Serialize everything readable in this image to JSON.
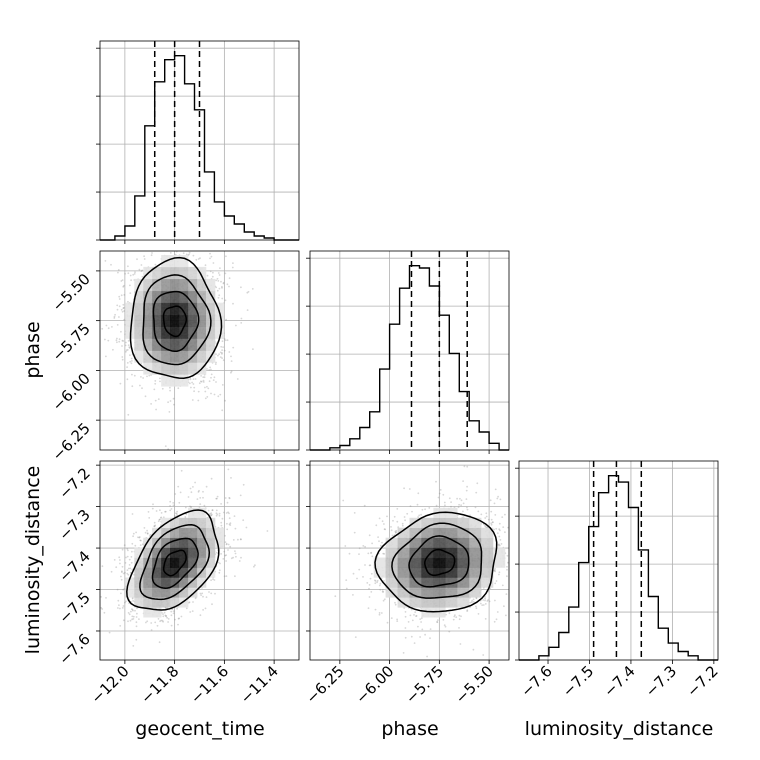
{
  "chart_data": {
    "type": "corner",
    "parameters": [
      "geocent_time",
      "phase",
      "luminosity_distance"
    ],
    "grid": true,
    "ranges": {
      "geocent_time": [
        -12.1,
        -11.3
      ],
      "phase": [
        -6.4,
        -5.4
      ],
      "luminosity_distance": [
        -7.67,
        -7.19
      ]
    },
    "ticks": {
      "geocent_time": [
        -12.0,
        -11.8,
        -11.6,
        -11.4
      ],
      "phase": [
        -6.25,
        -6.0,
        -5.75,
        -5.5
      ],
      "luminosity_distance": [
        -7.6,
        -7.5,
        -7.4,
        -7.3,
        -7.2
      ]
    },
    "tick_labels": {
      "geocent_time": [
        "−12.0",
        "−11.8",
        "−11.6",
        "−11.4"
      ],
      "phase": [
        "−6.25",
        "−6.00",
        "−5.75",
        "−5.50"
      ],
      "luminosity_distance": [
        "−7.6",
        "−7.5",
        "−7.4",
        "−7.3",
        "−7.2"
      ]
    },
    "quantiles": {
      "geocent_time": [
        -11.88,
        -11.8,
        -11.7
      ],
      "phase": [
        -5.89,
        -5.75,
        -5.61
      ],
      "luminosity_distance": [
        -7.49,
        -7.435,
        -7.375
      ]
    },
    "histograms": {
      "geocent_time": {
        "edges": [
          -12.1,
          -12.08,
          -12.06,
          -12.04,
          -12.02,
          -12.0,
          -11.98,
          -11.96,
          -11.94,
          -11.92,
          -11.9,
          -11.88,
          -11.86,
          -11.84,
          -11.82,
          -11.8,
          -11.78,
          -11.76,
          -11.74,
          -11.72,
          -11.7,
          -11.68,
          -11.66,
          -11.64,
          -11.62,
          -11.6,
          -11.58,
          -11.56,
          -11.54,
          -11.52,
          -11.5,
          -11.48,
          -11.46,
          -11.44,
          -11.42,
          -11.4,
          -11.38,
          -11.36,
          -11.34,
          -11.32,
          -11.3
        ],
        "counts": [
          0,
          0,
          0,
          2,
          2,
          7,
          7,
          22,
          22,
          57,
          57,
          79,
          79,
          90,
          90,
          92,
          92,
          78,
          78,
          65,
          65,
          34,
          34,
          19,
          19,
          12,
          12,
          8,
          8,
          4,
          4,
          2,
          2,
          1,
          1,
          0,
          0,
          0,
          0,
          0
        ]
      },
      "phase": {
        "edges": [
          -6.4,
          -6.375,
          -6.35,
          -6.325,
          -6.3,
          -6.275,
          -6.25,
          -6.225,
          -6.2,
          -6.175,
          -6.15,
          -6.125,
          -6.1,
          -6.075,
          -6.05,
          -6.025,
          -6.0,
          -5.975,
          -5.95,
          -5.925,
          -5.9,
          -5.875,
          -5.85,
          -5.825,
          -5.8,
          -5.775,
          -5.75,
          -5.725,
          -5.7,
          -5.675,
          -5.65,
          -5.625,
          -5.6,
          -5.575,
          -5.55,
          -5.525,
          -5.5,
          -5.475,
          -5.45,
          -5.425,
          -5.4
        ],
        "counts": [
          0,
          0,
          0,
          0,
          1,
          1,
          2,
          2,
          5,
          5,
          10,
          10,
          17,
          17,
          36,
          36,
          56,
          56,
          72,
          72,
          82,
          82,
          81,
          81,
          73,
          73,
          60,
          60,
          43,
          43,
          26,
          26,
          13,
          13,
          8,
          8,
          3,
          3,
          0,
          0
        ]
      },
      "luminosity_distance": {
        "edges": [
          -7.67,
          -7.658,
          -7.646,
          -7.634,
          -7.622,
          -7.61,
          -7.598,
          -7.586,
          -7.574,
          -7.562,
          -7.55,
          -7.538,
          -7.526,
          -7.514,
          -7.502,
          -7.49,
          -7.478,
          -7.466,
          -7.454,
          -7.442,
          -7.43,
          -7.418,
          -7.406,
          -7.394,
          -7.382,
          -7.37,
          -7.358,
          -7.346,
          -7.334,
          -7.322,
          -7.31,
          -7.298,
          -7.286,
          -7.274,
          -7.262,
          -7.25,
          -7.238,
          -7.226,
          -7.214,
          -7.202,
          -7.19
        ],
        "counts": [
          0,
          0,
          0,
          0,
          2,
          2,
          6,
          6,
          13,
          13,
          25,
          25,
          46,
          46,
          63,
          63,
          79,
          79,
          87,
          87,
          84,
          84,
          72,
          72,
          52,
          52,
          30,
          30,
          15,
          15,
          8,
          8,
          4,
          4,
          2,
          2,
          0,
          0,
          0,
          0
        ]
      }
    },
    "joint": [
      {
        "x": "geocent_time",
        "y": "phase",
        "mean": [
          -11.8,
          -5.75
        ],
        "std": [
          0.09,
          0.15
        ],
        "correlation": 0.0
      },
      {
        "x": "geocent_time",
        "y": "luminosity_distance",
        "mean": [
          -11.8,
          -7.435
        ],
        "std": [
          0.09,
          0.06
        ],
        "correlation": 0.45
      },
      {
        "x": "phase",
        "y": "luminosity_distance",
        "mean": [
          -5.75,
          -7.435
        ],
        "std": [
          0.15,
          0.06
        ],
        "correlation": 0.1
      }
    ],
    "contour_levels_sigma": [
      0.5,
      1.0,
      1.5,
      2.0
    ],
    "colors": {
      "line": "#000000",
      "grid": "#b0b0b0",
      "scatter": "#8c8c8c"
    }
  }
}
